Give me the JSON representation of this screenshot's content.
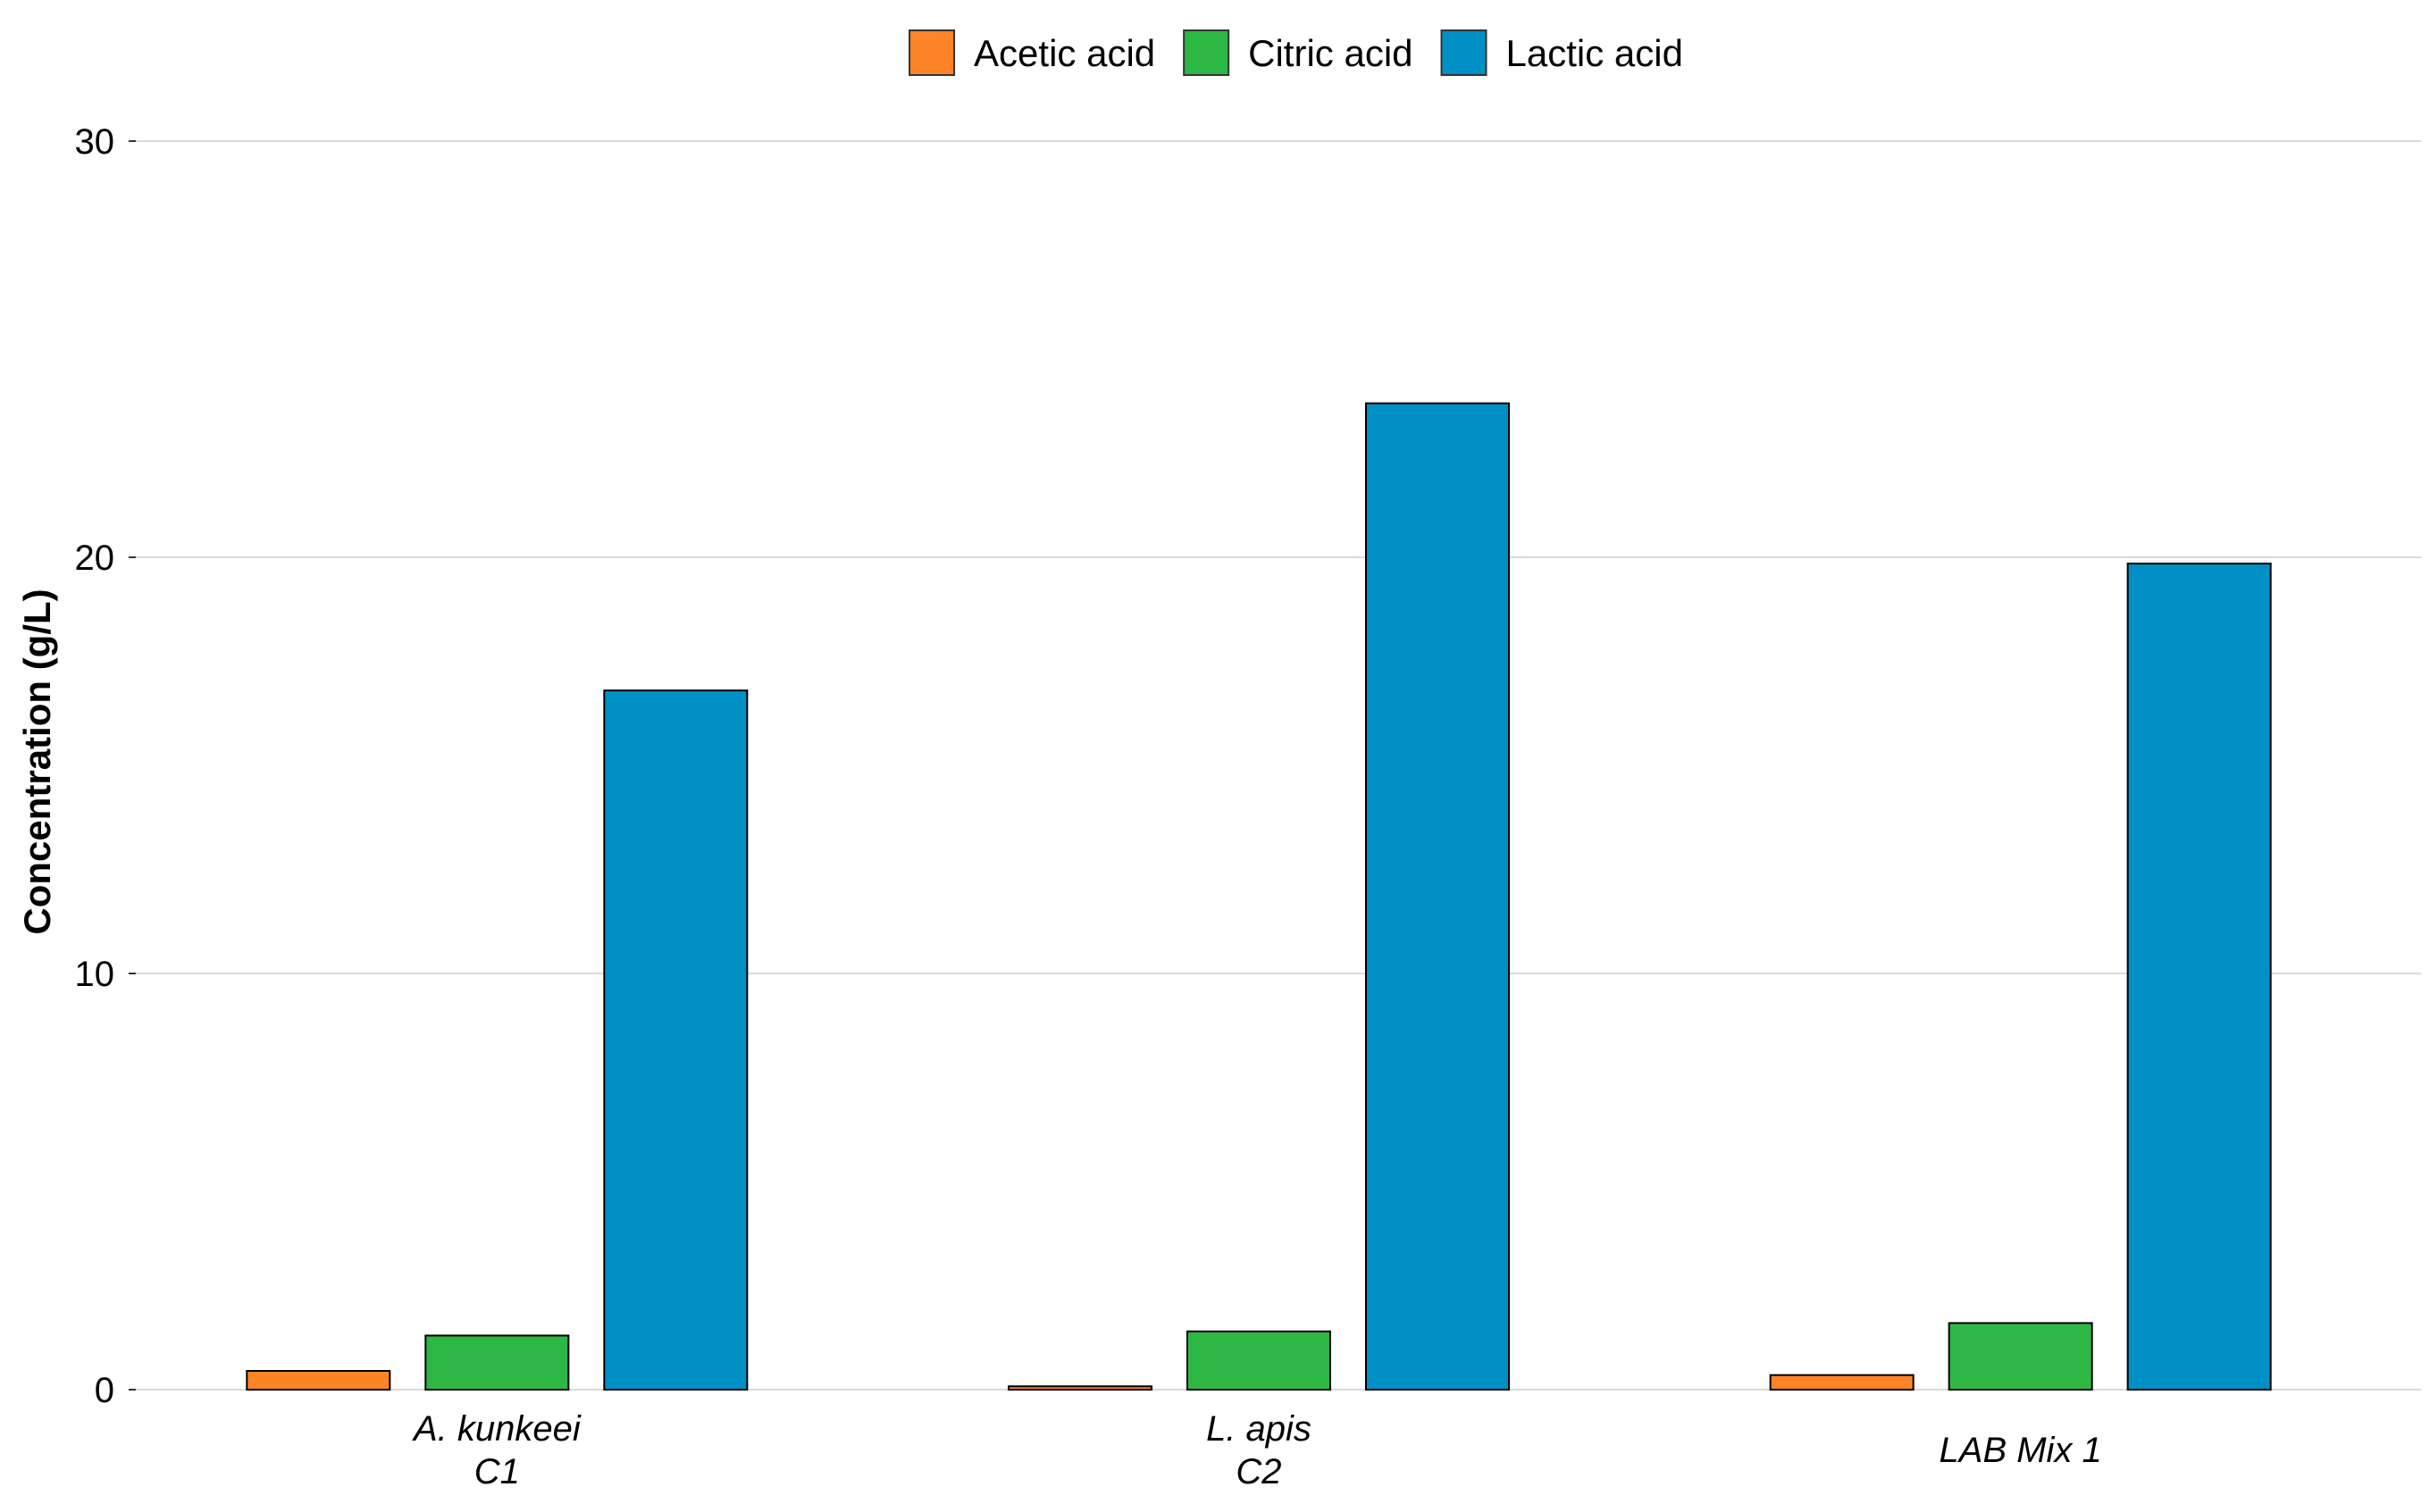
{
  "chart_data": {
    "type": "bar",
    "title": "",
    "xlabel": "",
    "ylabel": "Concentration (g/L)",
    "ylim": [
      0,
      30
    ],
    "yticks": [
      0,
      10,
      20,
      30
    ],
    "grid": true,
    "legend_position": "top-center",
    "categories": [
      {
        "line1": "A. kunkeei",
        "line2": "C1"
      },
      {
        "line1": "L. apis",
        "line2": "C2"
      },
      {
        "line1": "LAB Mix 1",
        "line2": ""
      }
    ],
    "series": [
      {
        "name": "Acetic acid",
        "color": "#ff8427",
        "values": [
          0.45,
          0.08,
          0.35
        ]
      },
      {
        "name": "Citric acid",
        "color": "#2db845",
        "values": [
          1.3,
          1.4,
          1.6
        ]
      },
      {
        "name": "Lactic acid",
        "color": "#0090c5",
        "values": [
          16.8,
          23.7,
          19.85
        ]
      }
    ]
  }
}
